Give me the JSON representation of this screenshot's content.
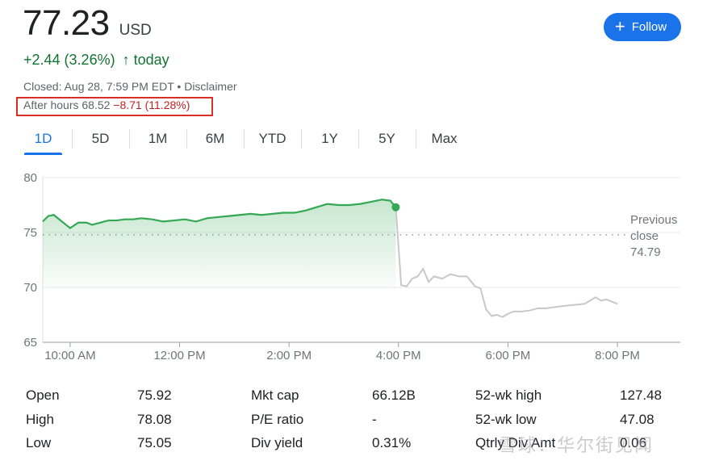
{
  "quote": {
    "price": "77.23",
    "currency": "USD",
    "change": "+2.44 (3.26%)",
    "change_arrow": "↑",
    "change_period": "today",
    "closed": "Closed: Aug 28, 7:59 PM EDT",
    "bullet": " • ",
    "disclaimer": "Disclaimer",
    "after_hours_label": "After hours 68.52",
    "after_hours_change": "−8.71 (11.28%)"
  },
  "follow": {
    "plus": "+",
    "label": "Follow"
  },
  "tabs": [
    "1D",
    "5D",
    "1M",
    "6M",
    "YTD",
    "1Y",
    "5Y",
    "Max"
  ],
  "active_tab": "1D",
  "colors": {
    "up": "#137333",
    "down": "#c5221f",
    "accent": "#1a73e8",
    "line_up": "#34a853",
    "line_after": "#c8c8c8"
  },
  "chart_data": {
    "type": "line",
    "x_unit": "time (hours, 24h)",
    "ylim": [
      65,
      80
    ],
    "yticks": [
      80,
      75,
      70,
      65
    ],
    "xlim": [
      9.5,
      20.5
    ],
    "xticks": [
      {
        "value": 10,
        "label": "10:00 AM"
      },
      {
        "value": 12,
        "label": "12:00 PM"
      },
      {
        "value": 14,
        "label": "2:00 PM"
      },
      {
        "value": 16,
        "label": "4:00 PM"
      },
      {
        "value": 18,
        "label": "6:00 PM"
      },
      {
        "value": 20,
        "label": "8:00 PM"
      }
    ],
    "previous_close": {
      "value": 74.79,
      "label_line1": "Previous",
      "label_line2": "close",
      "label_value": "74.79"
    },
    "series": [
      {
        "segment": "regular",
        "x": [
          9.5,
          9.6,
          9.7,
          9.85,
          10.0,
          10.15,
          10.3,
          10.4,
          10.55,
          10.7,
          10.85,
          11.0,
          11.15,
          11.3,
          11.5,
          11.7,
          11.9,
          12.1,
          12.3,
          12.5,
          12.7,
          12.9,
          13.1,
          13.3,
          13.5,
          13.7,
          13.9,
          14.1,
          14.3,
          14.5,
          14.7,
          14.9,
          15.1,
          15.3,
          15.5,
          15.7,
          15.85,
          15.95
        ],
        "y": [
          76.0,
          76.5,
          76.6,
          76.0,
          75.4,
          75.9,
          75.9,
          75.7,
          75.9,
          76.1,
          76.1,
          76.2,
          76.2,
          76.3,
          76.2,
          76.0,
          76.1,
          76.2,
          76.0,
          76.3,
          76.4,
          76.5,
          76.6,
          76.7,
          76.6,
          76.7,
          76.8,
          76.8,
          77.0,
          77.3,
          77.6,
          77.5,
          77.5,
          77.6,
          77.8,
          78.0,
          77.9,
          77.3
        ]
      },
      {
        "segment": "after_hours",
        "x": [
          15.95,
          16.05,
          16.15,
          16.25,
          16.35,
          16.45,
          16.55,
          16.65,
          16.8,
          16.95,
          17.1,
          17.25,
          17.4,
          17.5,
          17.6,
          17.7,
          17.8,
          17.9,
          18.0,
          18.1,
          18.25,
          18.4,
          18.55,
          18.7,
          18.85,
          19.0,
          19.2,
          19.4,
          19.6,
          19.7,
          19.8,
          19.9,
          20.0
        ],
        "y": [
          77.3,
          70.2,
          70.1,
          70.8,
          71.0,
          71.7,
          70.5,
          71.0,
          70.8,
          71.2,
          71.0,
          71.0,
          70.1,
          69.9,
          68.0,
          67.4,
          67.5,
          67.3,
          67.6,
          67.8,
          67.8,
          67.9,
          68.1,
          68.1,
          68.2,
          68.3,
          68.4,
          68.5,
          69.1,
          68.8,
          68.9,
          68.7,
          68.5
        ]
      }
    ]
  },
  "stats": [
    [
      {
        "label": "Open",
        "value": "75.92"
      },
      {
        "label": "Mkt cap",
        "value": "66.12B"
      },
      {
        "label": "52-wk high",
        "value": "127.48"
      }
    ],
    [
      {
        "label": "High",
        "value": "78.08"
      },
      {
        "label": "P/E ratio",
        "value": "-"
      },
      {
        "label": "52-wk low",
        "value": "47.08"
      }
    ],
    [
      {
        "label": "Low",
        "value": "75.05"
      },
      {
        "label": "Div yield",
        "value": "0.31%"
      },
      {
        "label": "Qtrly Div Amt",
        "value": "0.06"
      }
    ]
  ],
  "watermark": "雪球：华尔街见闻"
}
